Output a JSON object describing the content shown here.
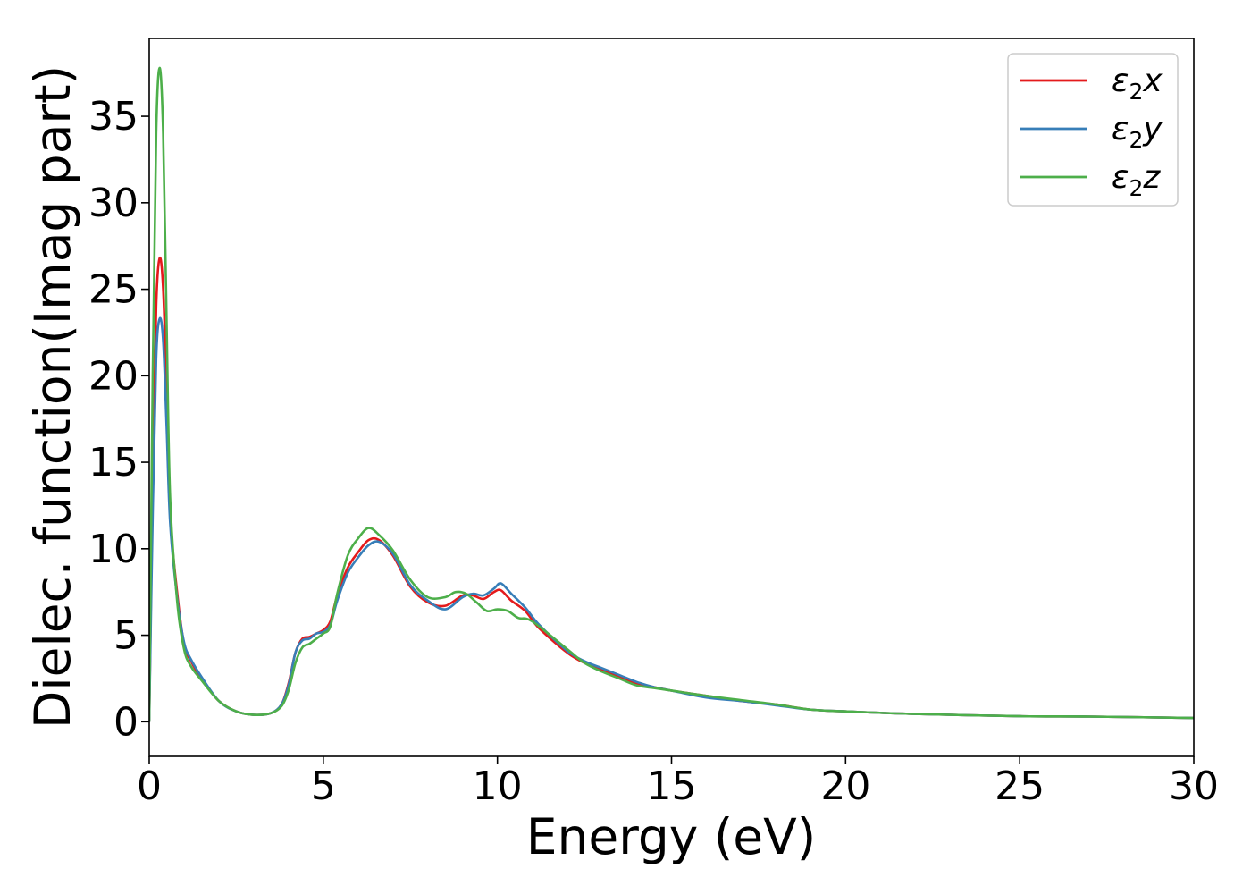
{
  "chart_data": {
    "type": "line",
    "title": "",
    "xlabel": "Energy (eV)",
    "ylabel": "Dielec. function(Imag part)",
    "xlim": [
      0,
      30
    ],
    "ylim": [
      -2,
      39.5
    ],
    "x_ticks": [
      0,
      5,
      10,
      15,
      20,
      25,
      30
    ],
    "y_ticks": [
      0,
      5,
      10,
      15,
      20,
      25,
      30,
      35
    ],
    "grid": false,
    "legend_position": "top-right",
    "series": [
      {
        "name": "ε₂x",
        "legend_base": "ε",
        "legend_sub": "2",
        "legend_suffix": "x",
        "color": "#e41a1c",
        "x": [
          0,
          0.1,
          0.2,
          0.3,
          0.4,
          0.5,
          0.6,
          0.8,
          1.0,
          1.2,
          1.5,
          2.0,
          2.5,
          3.0,
          3.5,
          3.8,
          4.0,
          4.2,
          4.4,
          4.6,
          4.8,
          5.0,
          5.2,
          5.4,
          5.7,
          6.0,
          6.3,
          6.6,
          7.0,
          7.5,
          8.0,
          8.5,
          9.0,
          9.3,
          9.6,
          9.9,
          10.1,
          10.4,
          10.8,
          11.2,
          12.0,
          12.5,
          13.0,
          13.5,
          14.0,
          14.5,
          15.0,
          16.0,
          17.0,
          18.0,
          19.0,
          20.0,
          22.0,
          25.0,
          27.0,
          30.0
        ],
        "y": [
          0,
          14.0,
          24.0,
          26.8,
          25.0,
          19.0,
          12.0,
          7.5,
          4.5,
          3.5,
          2.5,
          1.2,
          0.6,
          0.4,
          0.5,
          1.0,
          2.2,
          4.0,
          4.8,
          4.9,
          5.1,
          5.3,
          5.8,
          7.3,
          8.9,
          9.8,
          10.5,
          10.5,
          9.6,
          7.8,
          6.9,
          6.7,
          7.3,
          7.3,
          7.1,
          7.5,
          7.6,
          7.0,
          6.4,
          5.4,
          4.0,
          3.4,
          3.0,
          2.6,
          2.2,
          2.0,
          1.8,
          1.5,
          1.2,
          1.0,
          0.7,
          0.6,
          0.45,
          0.32,
          0.3,
          0.22
        ]
      },
      {
        "name": "ε₂y",
        "legend_base": "ε",
        "legend_sub": "2",
        "legend_suffix": "y",
        "color": "#377eb8",
        "x": [
          0,
          0.1,
          0.2,
          0.3,
          0.4,
          0.5,
          0.6,
          0.8,
          1.0,
          1.2,
          1.5,
          2.0,
          2.5,
          3.0,
          3.5,
          3.8,
          4.0,
          4.2,
          4.4,
          4.6,
          4.8,
          5.0,
          5.2,
          5.4,
          5.7,
          6.0,
          6.3,
          6.6,
          7.0,
          7.5,
          8.0,
          8.5,
          9.0,
          9.3,
          9.6,
          9.9,
          10.1,
          10.4,
          10.8,
          11.2,
          12.0,
          12.5,
          13.0,
          13.5,
          14.0,
          14.5,
          15.0,
          16.0,
          17.0,
          18.0,
          19.0,
          20.0,
          22.0,
          25.0,
          27.0,
          30.0
        ],
        "y": [
          0,
          12.0,
          21.0,
          23.3,
          22.0,
          17.0,
          11.5,
          7.2,
          4.6,
          3.6,
          2.6,
          1.2,
          0.6,
          0.4,
          0.5,
          1.0,
          2.1,
          4.0,
          4.7,
          4.8,
          5.1,
          5.2,
          5.6,
          7.0,
          8.6,
          9.5,
          10.2,
          10.4,
          9.7,
          7.9,
          7.0,
          6.5,
          7.2,
          7.4,
          7.3,
          7.7,
          8.0,
          7.4,
          6.6,
          5.6,
          4.1,
          3.5,
          3.1,
          2.7,
          2.3,
          2.0,
          1.8,
          1.4,
          1.2,
          0.95,
          0.7,
          0.6,
          0.45,
          0.32,
          0.3,
          0.22
        ]
      },
      {
        "name": "ε₂z",
        "legend_base": "ε",
        "legend_sub": "2",
        "legend_suffix": "z",
        "color": "#4daf4a",
        "x": [
          0,
          0.1,
          0.2,
          0.3,
          0.4,
          0.5,
          0.6,
          0.8,
          1.0,
          1.2,
          1.5,
          2.0,
          2.5,
          3.0,
          3.5,
          3.8,
          4.0,
          4.2,
          4.4,
          4.6,
          4.8,
          5.0,
          5.2,
          5.4,
          5.7,
          6.0,
          6.3,
          6.6,
          7.0,
          7.5,
          8.0,
          8.5,
          8.8,
          9.1,
          9.4,
          9.7,
          10.0,
          10.3,
          10.6,
          11.0,
          12.0,
          12.5,
          13.0,
          13.5,
          14.0,
          14.5,
          15.0,
          16.0,
          17.0,
          18.0,
          19.0,
          20.0,
          22.0,
          25.0,
          27.0,
          30.0
        ],
        "y": [
          0,
          20.0,
          34.0,
          37.8,
          34.0,
          23.0,
          13.0,
          7.0,
          4.2,
          3.2,
          2.4,
          1.2,
          0.6,
          0.4,
          0.5,
          0.9,
          1.8,
          3.4,
          4.3,
          4.5,
          4.8,
          5.1,
          5.5,
          7.4,
          9.6,
          10.6,
          11.2,
          10.8,
          9.9,
          8.2,
          7.2,
          7.2,
          7.5,
          7.4,
          6.9,
          6.4,
          6.5,
          6.4,
          6.0,
          5.8,
          4.2,
          3.4,
          2.9,
          2.5,
          2.1,
          1.95,
          1.8,
          1.5,
          1.25,
          1.0,
          0.7,
          0.6,
          0.45,
          0.32,
          0.3,
          0.22
        ]
      }
    ]
  }
}
